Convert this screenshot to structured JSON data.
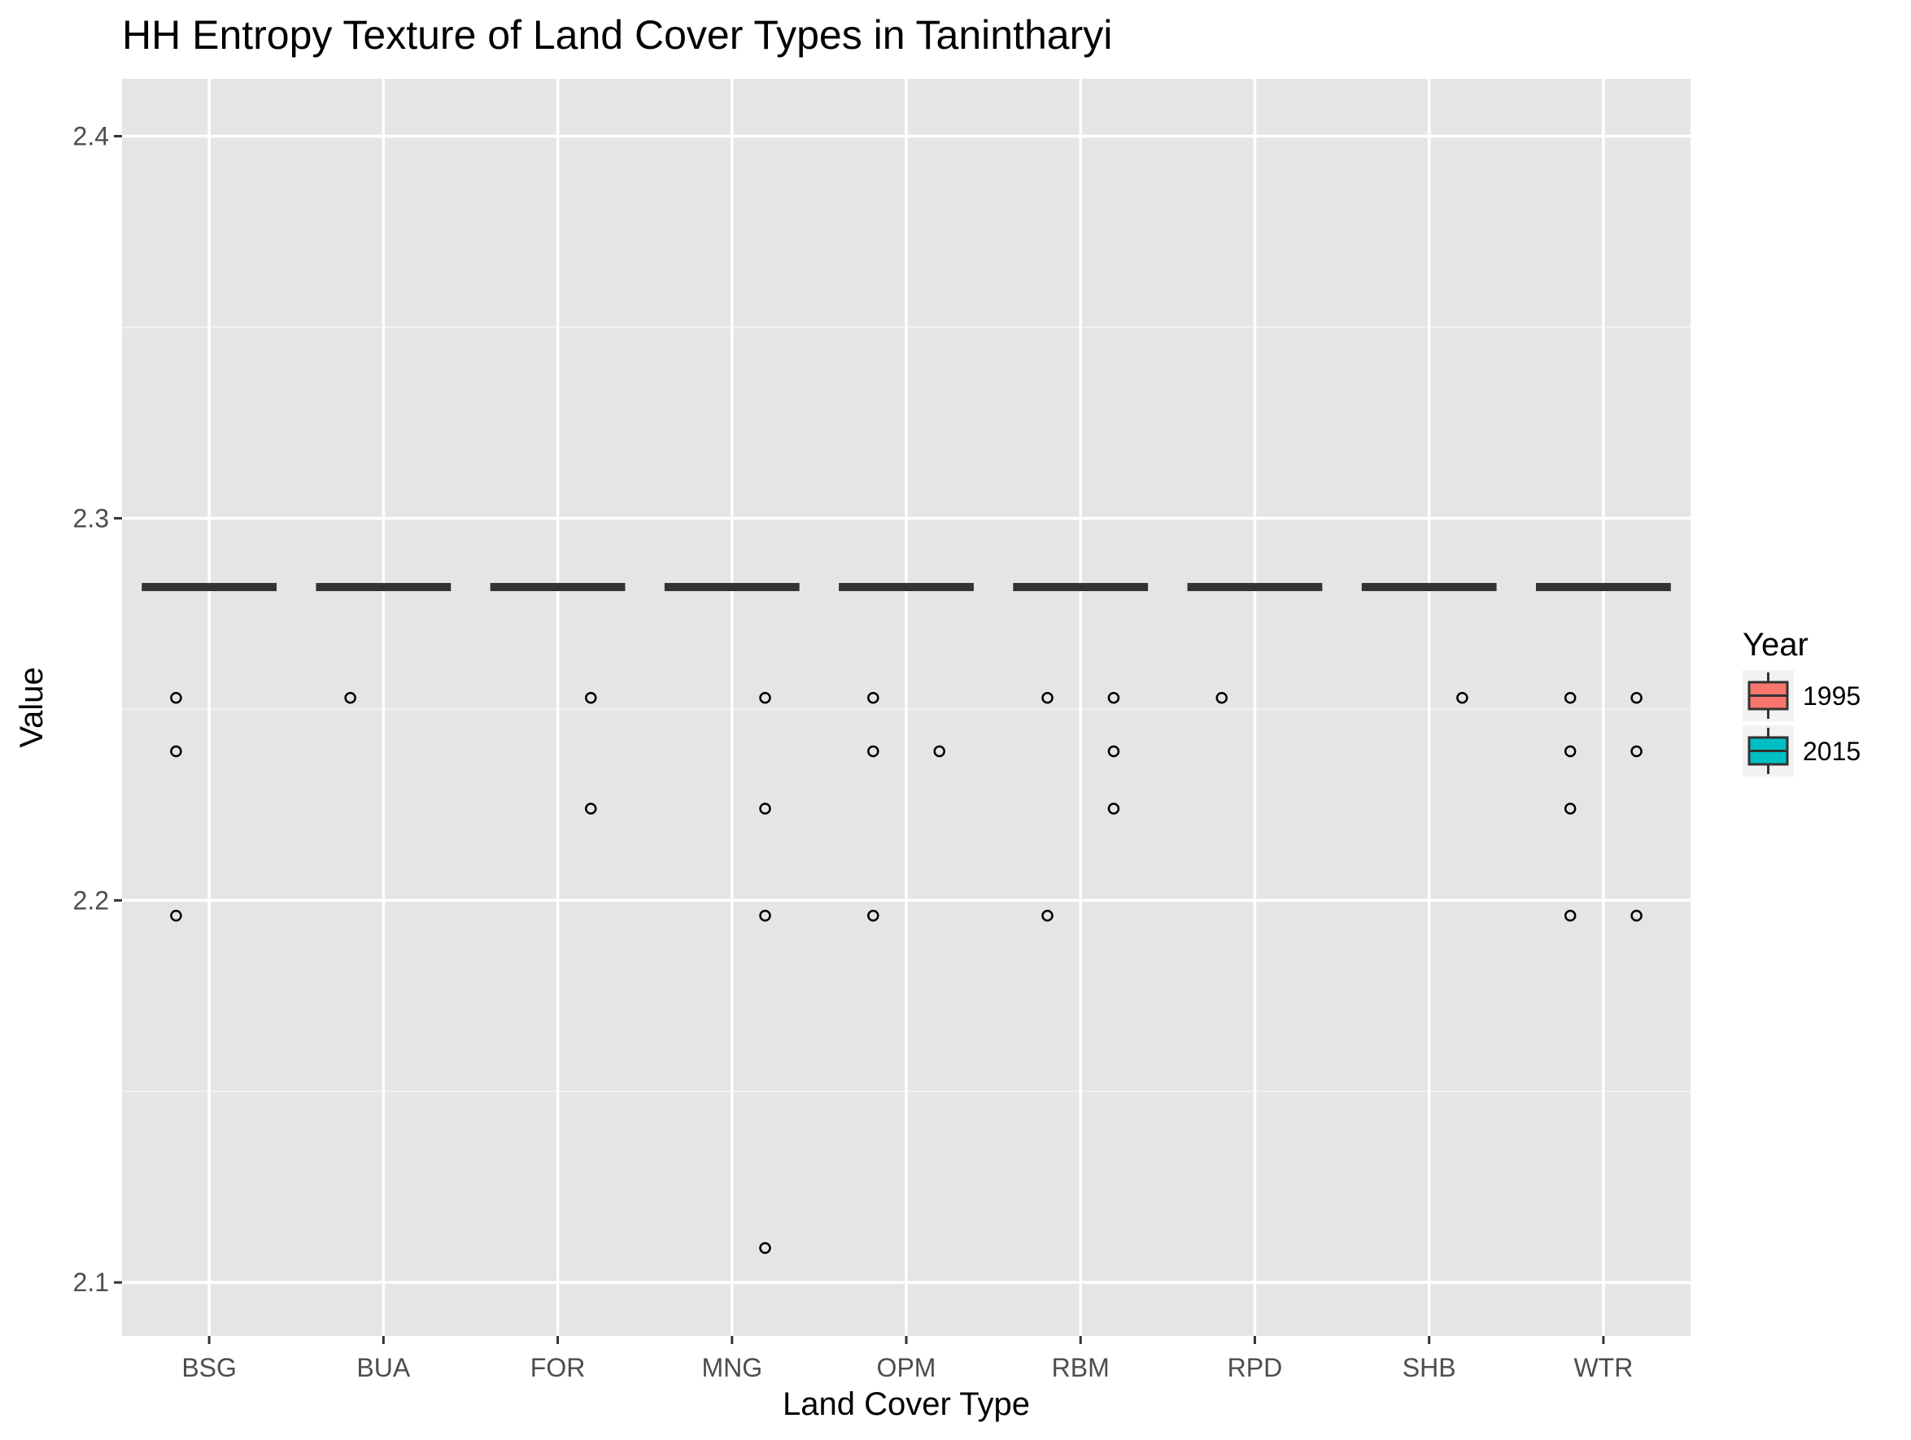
{
  "chart_data": {
    "type": "box",
    "title": "HH Entropy Texture of Land Cover Types in Tanintharyi",
    "xlabel": "Land Cover Type",
    "ylabel": "Value",
    "categories": [
      "BSG",
      "BUA",
      "FOR",
      "MNG",
      "OPM",
      "RBM",
      "RPD",
      "SHB",
      "WTR"
    ],
    "ylim": [
      2.086,
      2.415
    ],
    "yticks": [
      2.1,
      2.2,
      2.3,
      2.4
    ],
    "ytick_labels": [
      "2.1",
      "2.2",
      "2.3",
      "2.4"
    ],
    "grid": true,
    "legend": {
      "title": "Year",
      "position": "right"
    },
    "series": [
      {
        "name": "1995",
        "color": "#F8766D",
        "median": [
          2.282,
          2.282,
          2.282,
          2.282,
          2.282,
          2.282,
          2.282,
          2.282,
          2.282
        ],
        "outliers": [
          [
            2.253,
            2.239,
            2.196
          ],
          [
            2.253
          ],
          [],
          [],
          [
            2.253,
            2.239,
            2.196
          ],
          [
            2.253,
            2.196
          ],
          [
            2.253
          ],
          [],
          [
            2.253,
            2.239,
            2.224,
            2.196
          ]
        ]
      },
      {
        "name": "2015",
        "color": "#00BFC4",
        "median": [
          2.282,
          2.282,
          2.282,
          2.282,
          2.282,
          2.282,
          2.282,
          2.282,
          2.282
        ],
        "outliers": [
          [],
          [],
          [
            2.253,
            2.224
          ],
          [
            2.253,
            2.224,
            2.196,
            2.109
          ],
          [
            2.239
          ],
          [
            2.253,
            2.239,
            2.224
          ],
          [],
          [
            2.253
          ],
          [
            2.253,
            2.239,
            2.196
          ]
        ]
      }
    ]
  }
}
